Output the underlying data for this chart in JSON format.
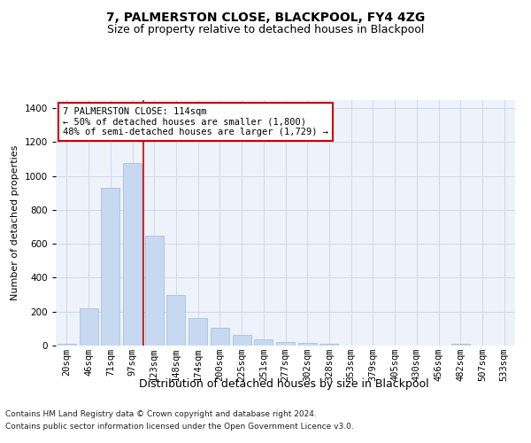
{
  "title": "7, PALMERSTON CLOSE, BLACKPOOL, FY4 4ZG",
  "subtitle": "Size of property relative to detached houses in Blackpool",
  "xlabel": "Distribution of detached houses by size in Blackpool",
  "ylabel": "Number of detached properties",
  "footer_line1": "Contains HM Land Registry data © Crown copyright and database right 2024.",
  "footer_line2": "Contains public sector information licensed under the Open Government Licence v3.0.",
  "categories": [
    "20sqm",
    "46sqm",
    "71sqm",
    "97sqm",
    "123sqm",
    "148sqm",
    "174sqm",
    "200sqm",
    "225sqm",
    "251sqm",
    "277sqm",
    "302sqm",
    "328sqm",
    "353sqm",
    "379sqm",
    "405sqm",
    "430sqm",
    "456sqm",
    "482sqm",
    "507sqm",
    "533sqm"
  ],
  "values": [
    10,
    220,
    930,
    1075,
    650,
    300,
    160,
    105,
    65,
    35,
    20,
    15,
    10,
    0,
    0,
    0,
    0,
    0,
    10,
    0,
    0
  ],
  "bar_color": "#c6d9f0",
  "bar_edge_color": "#a0b8d8",
  "grid_color": "#d0d8e8",
  "background_color": "#eef2fa",
  "annotation_text": "7 PALMERSTON CLOSE: 114sqm\n← 50% of detached houses are smaller (1,800)\n48% of semi-detached houses are larger (1,729) →",
  "annotation_box_color": "#ffffff",
  "annotation_border_color": "#cc0000",
  "vline_color": "#cc0000",
  "ylim": [
    0,
    1450
  ],
  "title_fontsize": 10,
  "subtitle_fontsize": 9,
  "xlabel_fontsize": 9,
  "ylabel_fontsize": 8,
  "tick_fontsize": 7.5,
  "annotation_fontsize": 7.5,
  "footer_fontsize": 6.5
}
